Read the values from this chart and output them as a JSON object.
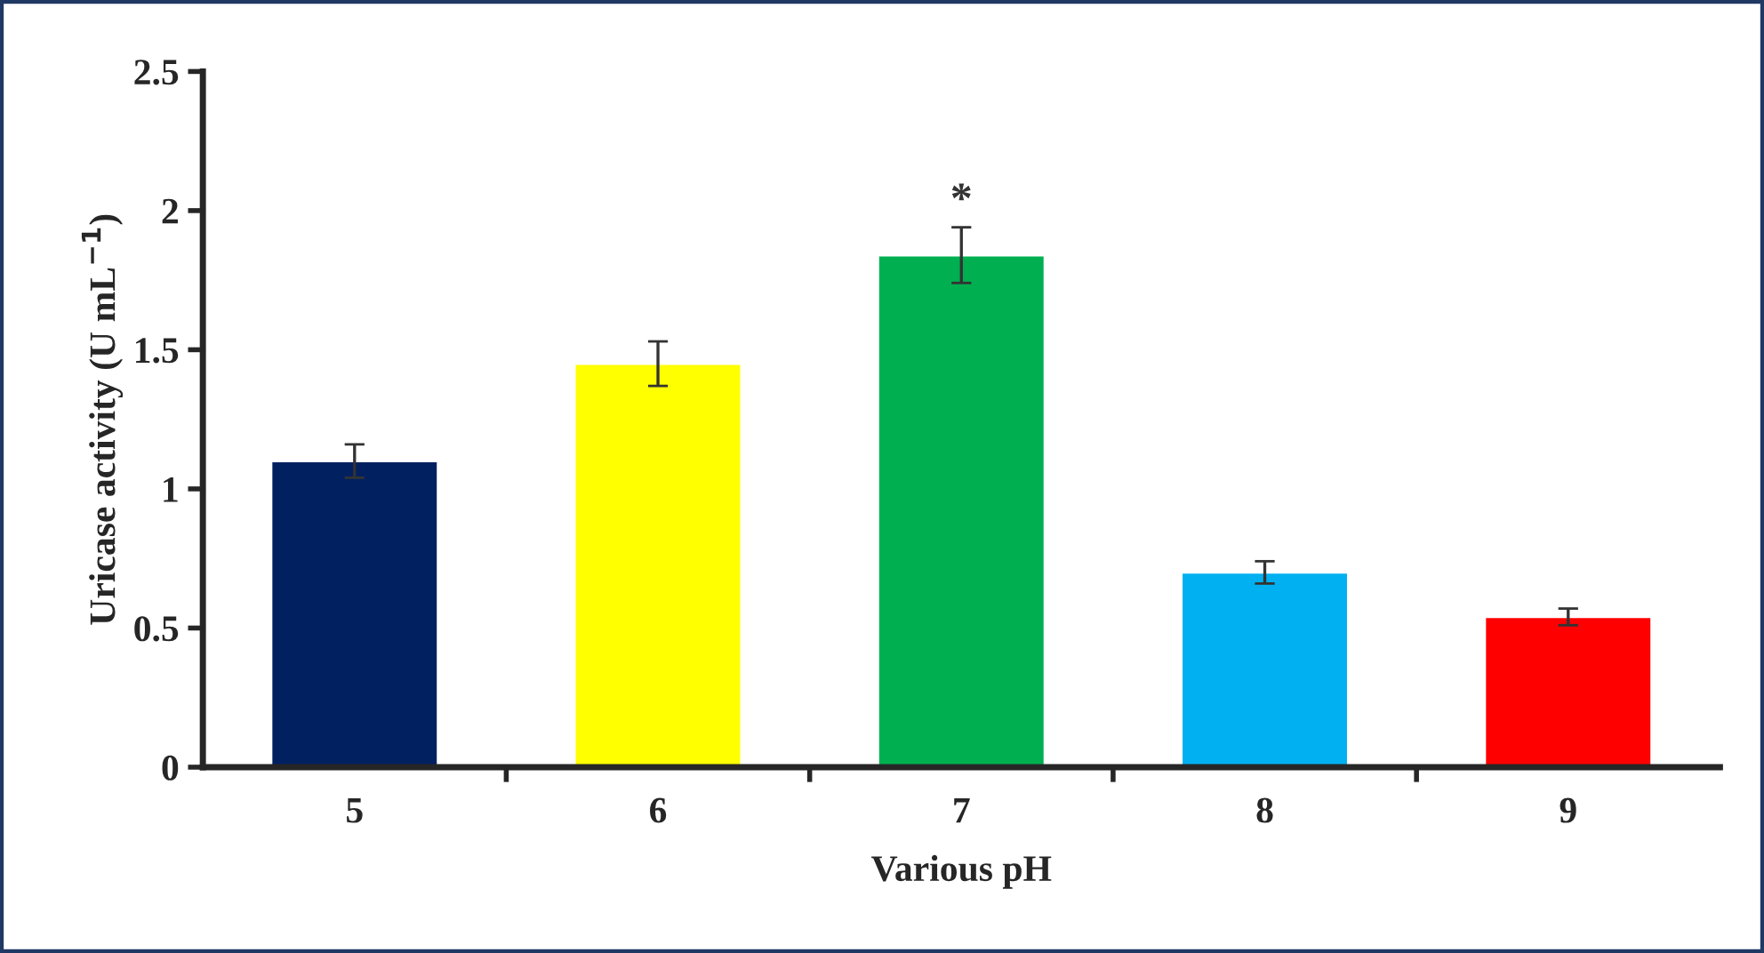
{
  "chart_data": {
    "type": "bar",
    "xlabel": "Various pH",
    "ylabel": "Uricase activity (U mL$^{−1}$)",
    "categories": [
      "5",
      "6",
      "7",
      "8",
      "9"
    ],
    "values": [
      1.1,
      1.45,
      1.84,
      0.7,
      0.54
    ],
    "errors": [
      0.06,
      0.08,
      0.1,
      0.04,
      0.03
    ],
    "colors": [
      "#002060",
      "#ffff00",
      "#00b050",
      "#00b0f0",
      "#ff0000"
    ],
    "ylim": [
      0,
      2.5
    ],
    "yticks": [
      0,
      0.5,
      1,
      1.5,
      2,
      2.5
    ],
    "annotations": [
      {
        "text": "*",
        "x": "7",
        "y": 1.94
      }
    ],
    "grid": false,
    "legend": false
  }
}
